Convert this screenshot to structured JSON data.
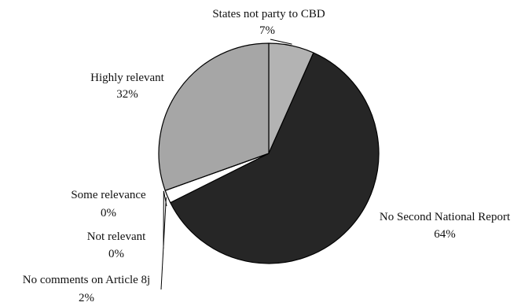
{
  "chart_data": {
    "type": "pie",
    "start_angle_deg": 0,
    "direction": "clockwise",
    "slices": [
      {
        "label": "States not party to CBD",
        "value_label": "7%",
        "value": 7,
        "color": "#b3b3b3"
      },
      {
        "label": "No Second National Report",
        "value_label": "64%",
        "value": 64,
        "color": "#262626"
      },
      {
        "label": "No comments on Article 8j",
        "value_label": "2%",
        "value": 2,
        "color": "#ffffff"
      },
      {
        "label": "Not relevant",
        "value_label": "0%",
        "value": 0,
        "color": "#ffffff"
      },
      {
        "label": "Some relevance",
        "value_label": "0%",
        "value": 0,
        "color": "#ffffff"
      },
      {
        "label": "Highly relevant",
        "value_label": "32%",
        "value": 32,
        "color": "#a6a6a6"
      }
    ]
  }
}
